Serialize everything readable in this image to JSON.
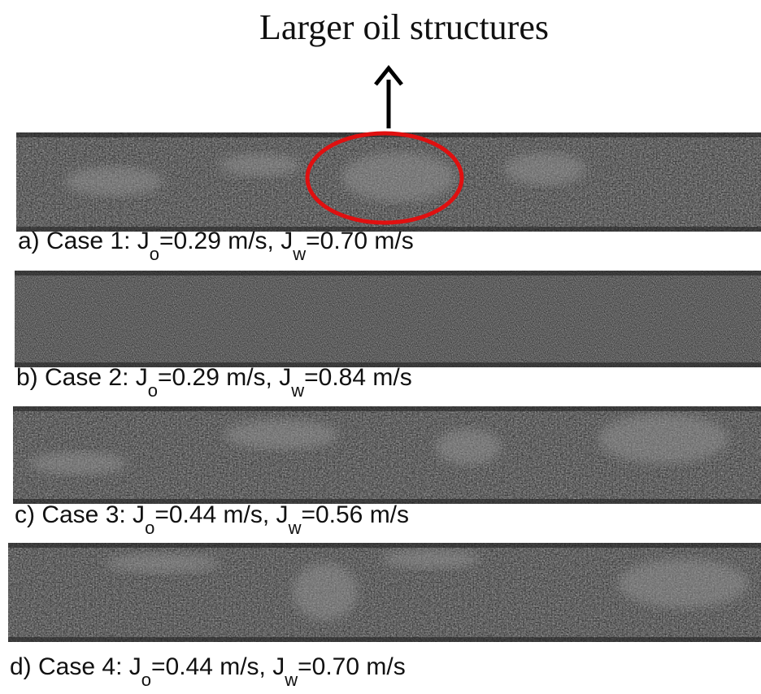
{
  "header": {
    "title": "Larger oil structures"
  },
  "panels": [
    {
      "caption": [
        "a) Case 1: J",
        "o",
        "=0.29 m/s, J",
        "w",
        "=0.70 m/s"
      ]
    },
    {
      "caption": [
        "b) Case 2: J",
        "o",
        "=0.29 m/s, J",
        "w",
        "=0.84 m/s"
      ]
    },
    {
      "caption": [
        "c) Case 3: J",
        "o",
        "=0.44 m/s, J",
        "w",
        "=0.56 m/s"
      ]
    },
    {
      "caption": [
        "d) Case 4: J",
        "o",
        "=0.44 m/s, J",
        "w",
        "=0.70 m/s"
      ]
    }
  ]
}
